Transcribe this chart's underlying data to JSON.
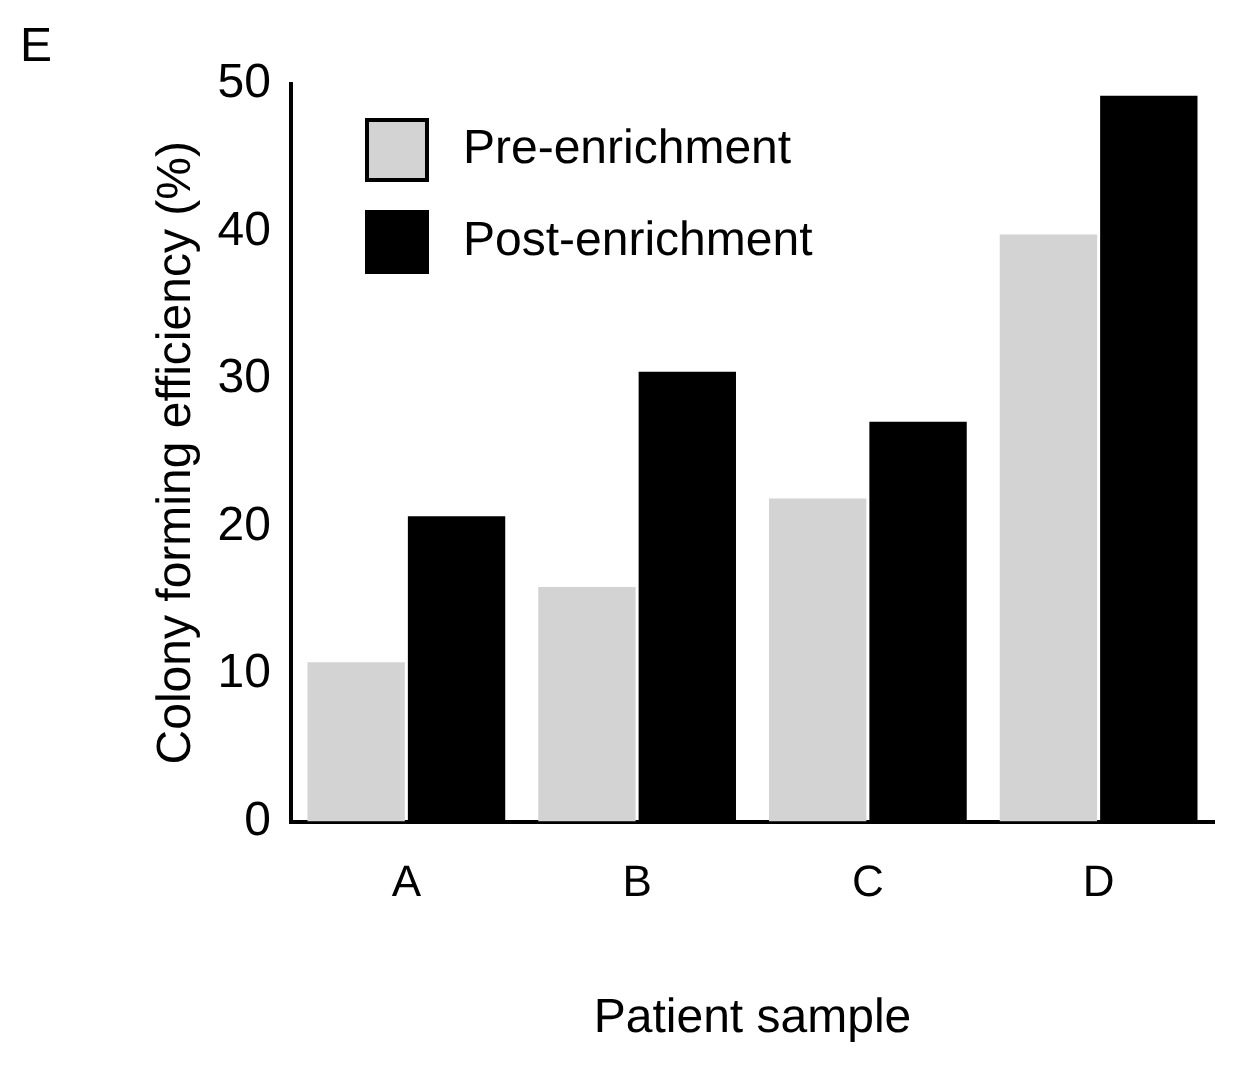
{
  "chart_data": {
    "type": "bar",
    "annotations": [
      "E"
    ],
    "xlabel": "Patient sample",
    "ylabel": "Colony forming efficiency (%)",
    "categories": [
      "A",
      "B",
      "C",
      "D"
    ],
    "series": [
      {
        "name": "Pre-enrichment",
        "color": "#d3d3d3",
        "values": [
          10.8,
          15.9,
          21.9,
          39.8
        ]
      },
      {
        "name": "Post-enrichment",
        "color": "#000000",
        "values": [
          20.7,
          30.5,
          27.1,
          49.2
        ]
      }
    ],
    "ylim": [
      0,
      50
    ],
    "yticks": [
      0,
      10,
      20,
      30,
      40,
      50
    ],
    "grid": false,
    "legend": "top left"
  }
}
